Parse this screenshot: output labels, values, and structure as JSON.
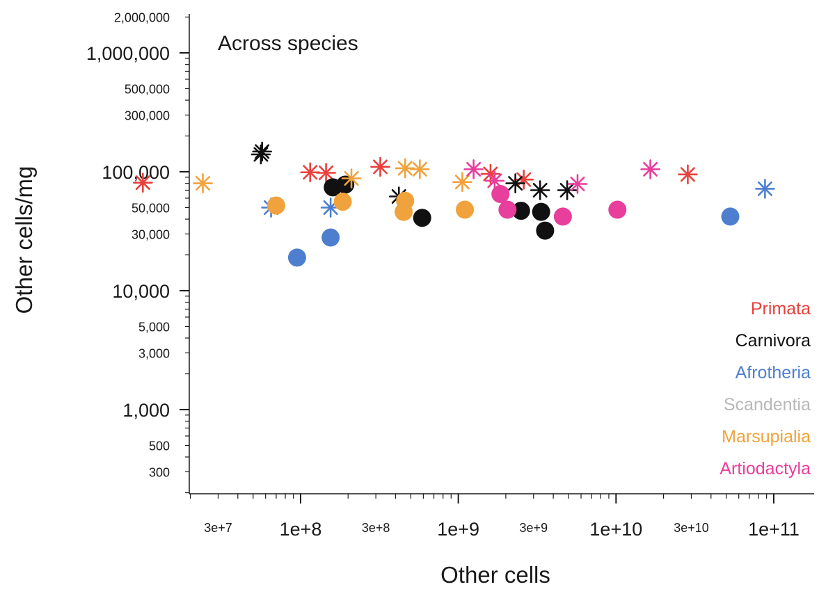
{
  "chart_data": {
    "type": "scatter",
    "title": "",
    "annotation": "Across species",
    "xlabel": "Other cells",
    "ylabel": "Other cells/mg",
    "x_scale": "log",
    "y_scale": "log",
    "xlim": [
      20000000,
      150000000000
    ],
    "ylim": [
      200,
      2000000
    ],
    "x_ticks": [
      {
        "value": 30000000,
        "label": "3e+7",
        "major": false
      },
      {
        "value": 100000000,
        "label": "1e+8",
        "major": true
      },
      {
        "value": 300000000,
        "label": "3e+8",
        "major": false
      },
      {
        "value": 1000000000,
        "label": "1e+9",
        "major": true
      },
      {
        "value": 3000000000,
        "label": "3e+9",
        "major": false
      },
      {
        "value": 10000000000,
        "label": "1e+10",
        "major": true
      },
      {
        "value": 30000000000,
        "label": "3e+10",
        "major": false
      },
      {
        "value": 100000000000,
        "label": "1e+11",
        "major": true
      }
    ],
    "y_ticks": [
      {
        "value": 300,
        "label": "300",
        "major": false
      },
      {
        "value": 500,
        "label": "500",
        "major": false
      },
      {
        "value": 1000,
        "label": "1,000",
        "major": true
      },
      {
        "value": 3000,
        "label": "3,000",
        "major": false
      },
      {
        "value": 5000,
        "label": "5,000",
        "major": false
      },
      {
        "value": 10000,
        "label": "10,000",
        "major": true
      },
      {
        "value": 30000,
        "label": "30,000",
        "major": false
      },
      {
        "value": 50000,
        "label": "50,000",
        "major": false
      },
      {
        "value": 100000,
        "label": "100,000",
        "major": true
      },
      {
        "value": 300000,
        "label": "300,000",
        "major": false
      },
      {
        "value": 500000,
        "label": "500,000",
        "major": false
      },
      {
        "value": 1000000,
        "label": "1,000,000",
        "major": true
      },
      {
        "value": 2000000,
        "label": "2,000,000",
        "major": false
      }
    ],
    "grid": false,
    "legend_position": "bottom-right",
    "series": [
      {
        "name": "Primata",
        "color": "#e8413c",
        "asterisks": [
          [
            10000000,
            81000
          ],
          [
            115000000,
            99000
          ],
          [
            145000000,
            98000
          ],
          [
            320000000,
            110000
          ],
          [
            1600000000,
            96000
          ],
          [
            2600000000,
            86000
          ],
          [
            28500000000,
            95000
          ]
        ],
        "dots": []
      },
      {
        "name": "Carnivora",
        "color": "#111111",
        "asterisks": [
          [
            56000000,
            140000
          ],
          [
            57000000,
            148000
          ],
          [
            420000000,
            62000
          ],
          [
            2300000000,
            80000
          ],
          [
            3300000000,
            70000
          ],
          [
            4900000000,
            70000
          ]
        ],
        "dots": [
          [
            160000000,
            74000
          ],
          [
            192000000,
            78000
          ],
          [
            590000000,
            41000
          ],
          [
            2500000000,
            47000
          ],
          [
            3350000000,
            46000
          ],
          [
            3550000000,
            32000
          ]
        ]
      },
      {
        "name": "Afrotheria",
        "color": "#4e7fcf",
        "asterisks": [
          [
            65000000,
            50000
          ],
          [
            155000000,
            50000
          ],
          [
            88000000000,
            72000
          ]
        ],
        "dots": [
          [
            95000000,
            19000
          ],
          [
            155000000,
            28000
          ],
          [
            53000000000,
            42000
          ]
        ]
      },
      {
        "name": "Scandentia",
        "color": "#b8b8b8",
        "asterisks": [],
        "dots": []
      },
      {
        "name": "Marsupialia",
        "color": "#f0a23c",
        "asterisks": [
          [
            24000000,
            80000
          ],
          [
            210000000,
            88000
          ],
          [
            460000000,
            107000
          ],
          [
            570000000,
            105000
          ],
          [
            1060000000,
            82000
          ]
        ],
        "dots": [
          [
            70000000,
            52000
          ],
          [
            185000000,
            56000
          ],
          [
            460000000,
            57000
          ],
          [
            450000000,
            46000
          ],
          [
            1100000000,
            48000
          ]
        ]
      },
      {
        "name": "Artiodactyla",
        "color": "#e83e9c",
        "asterisks": [
          [
            1250000000,
            105000
          ],
          [
            1700000000,
            84000
          ],
          [
            5700000000,
            79000
          ],
          [
            16500000000,
            105000
          ]
        ],
        "dots": [
          [
            1850000000,
            65000
          ],
          [
            2050000000,
            48000
          ],
          [
            4600000000,
            42000
          ],
          [
            10200000000,
            48000
          ]
        ]
      }
    ]
  }
}
